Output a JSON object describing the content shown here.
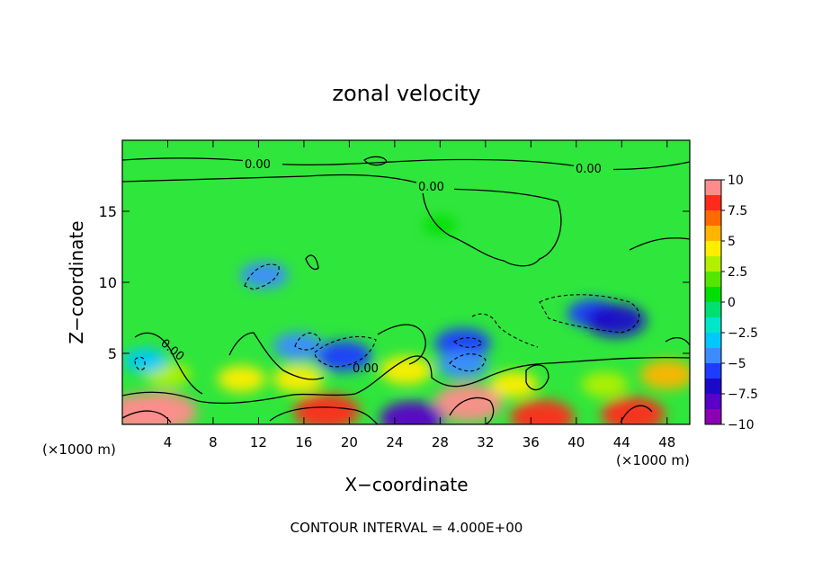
{
  "chart_data": {
    "type": "heatmap",
    "title": "zonal velocity",
    "xlabel": "X−coordinate",
    "ylabel": "Z−coordinate",
    "x_unit": "(×1000 m)",
    "y_unit": "(×1000 m)",
    "xlim": [
      0,
      50
    ],
    "ylim": [
      0,
      20
    ],
    "x_ticks": [
      "4",
      "8",
      "12",
      "16",
      "20",
      "24",
      "28",
      "32",
      "36",
      "40",
      "44",
      "48"
    ],
    "y_ticks": [
      "5",
      "10",
      "15"
    ],
    "footer": "CONTOUR INTERVAL = 4.000E+00",
    "contour_labels": [
      "0.00",
      "0.00",
      "0.00",
      "0.00",
      "0.00"
    ],
    "colorbar": {
      "labels": [
        "10",
        "7.5",
        "5",
        "2.5",
        "0",
        "−2.5",
        "−5",
        "−7.5",
        "−10"
      ],
      "range": [
        -10,
        10
      ],
      "colors": [
        "#ff8c8c",
        "#ff2a1a",
        "#ff6a00",
        "#ffb400",
        "#ffee00",
        "#b2f000",
        "#55e600",
        "#00e000",
        "#00e070",
        "#00e6c8",
        "#00c8ff",
        "#3c8cff",
        "#1e3cff",
        "#1a0ac8",
        "#5a00c8",
        "#8c00b4"
      ]
    },
    "features": [
      {
        "x": 1.5,
        "z": 0.8,
        "value": 9
      },
      {
        "x": 3.5,
        "z": 0.9,
        "value": 9.5
      },
      {
        "x": 18,
        "z": 0.9,
        "value": 8.5
      },
      {
        "x": 30.5,
        "z": 1.5,
        "value": 9
      },
      {
        "x": 37,
        "z": 0.5,
        "value": 8
      },
      {
        "x": 45,
        "z": 0.7,
        "value": 8
      },
      {
        "x": 25.5,
        "z": 0.4,
        "value": -8
      },
      {
        "x": 19.5,
        "z": 4.8,
        "value": -6
      },
      {
        "x": 15.5,
        "z": 5.5,
        "value": -4.5
      },
      {
        "x": 30,
        "z": 5.7,
        "value": -6
      },
      {
        "x": 30,
        "z": 4.2,
        "value": -4.5
      },
      {
        "x": 41.5,
        "z": 7.8,
        "value": -5
      },
      {
        "x": 43.5,
        "z": 7.3,
        "value": -7
      },
      {
        "x": 12.5,
        "z": 10.5,
        "value": -4
      },
      {
        "x": 25,
        "z": 3.8,
        "value": 5
      },
      {
        "x": 15.5,
        "z": 3.2,
        "value": 4.5
      },
      {
        "x": 48,
        "z": 3.5,
        "value": 5.5
      },
      {
        "x": 10.5,
        "z": 3.2,
        "value": 4
      },
      {
        "x": 4,
        "z": 3.5,
        "value": 3.5
      },
      {
        "x": 34.5,
        "z": 2.8,
        "value": 4
      },
      {
        "x": 42.5,
        "z": 2.8,
        "value": 3.5
      },
      {
        "x": 2,
        "z": 4.5,
        "value": -3
      },
      {
        "x": 28,
        "z": 14,
        "value": 0.5
      }
    ]
  }
}
